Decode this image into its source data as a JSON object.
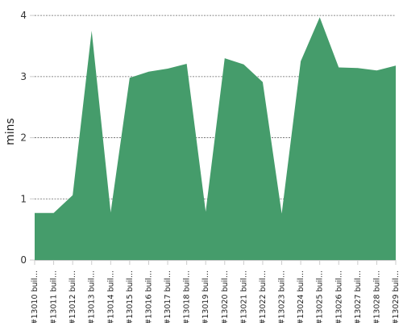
{
  "chart_data": {
    "type": "area",
    "categories": [
      "#13010 buil...",
      "#13011 buil...",
      "#13012 buil...",
      "#13013 buil...",
      "#13014 buil...",
      "#13015 buil...",
      "#13016 buil...",
      "#13017 buil...",
      "#13018 buil...",
      "#13019 buil...",
      "#13020 buil...",
      "#13021 buil...",
      "#13022 buil...",
      "#13023 buil...",
      "#13024 buil...",
      "#13025 buil...",
      "#13026 buil...",
      "#13027 buil...",
      "#13028 buil...",
      "#13029 buil..."
    ],
    "series": [
      {
        "values": [
          0.77,
          0.77,
          1.06,
          3.75,
          0.78,
          2.98,
          3.08,
          3.13,
          3.21,
          0.79,
          3.3,
          3.2,
          2.91,
          0.76,
          3.25,
          3.97,
          3.15,
          3.14,
          3.1,
          3.18
        ]
      }
    ],
    "ylabel": "mins",
    "ylim": [
      0,
      4.2
    ],
    "yticks": [
      0,
      1,
      2,
      3,
      4
    ],
    "grid": true,
    "colors": {
      "fill": "#459c6b",
      "grid": "#666666",
      "axis": "#cccccc"
    }
  }
}
